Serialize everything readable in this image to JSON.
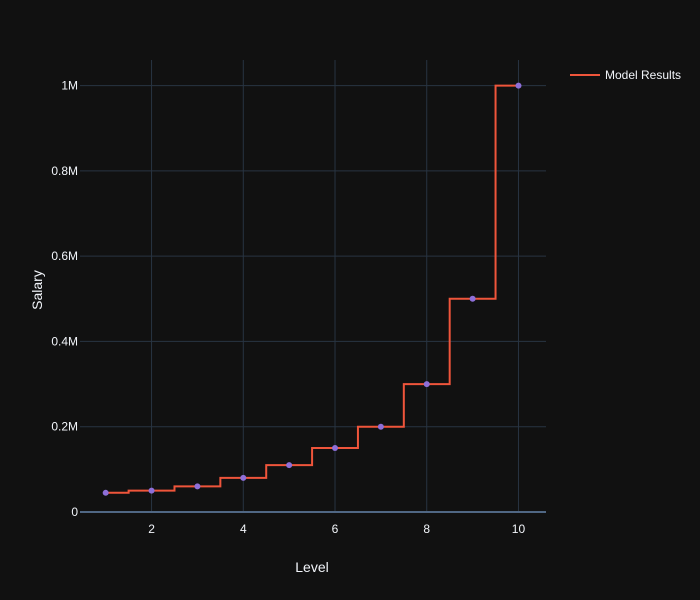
{
  "chart_data": {
    "type": "line",
    "title": "",
    "xlabel": "Level",
    "ylabel": "Salary",
    "xlim": [
      0.44,
      10.6
    ],
    "ylim": [
      0,
      1060000
    ],
    "x_ticks": [
      2,
      4,
      6,
      8,
      10
    ],
    "x_tick_labels": [
      "2",
      "4",
      "6",
      "8",
      "10"
    ],
    "y_ticks": [
      0,
      200000,
      400000,
      600000,
      800000,
      1000000
    ],
    "y_tick_labels": [
      "0",
      "0.2M",
      "0.4M",
      "0.6M",
      "0.8M",
      "1M"
    ],
    "grid": true,
    "legend_position": "top-right",
    "series": [
      {
        "name": "Model Results",
        "kind": "step",
        "color": "#ef553b",
        "x": [
          1,
          2,
          3,
          4,
          5,
          6,
          7,
          8,
          9,
          10
        ],
        "y": [
          45000,
          50000,
          60000,
          80000,
          110000,
          150000,
          200000,
          300000,
          500000,
          1000000
        ]
      },
      {
        "kind": "markers",
        "color": "#8e6fd8",
        "x": [
          1,
          2,
          3,
          4,
          5,
          6,
          7,
          8,
          9,
          10
        ],
        "y": [
          45000,
          50000,
          60000,
          80000,
          110000,
          150000,
          200000,
          300000,
          500000,
          1000000
        ]
      }
    ],
    "colors": {
      "background": "#111111",
      "grid": "#283442",
      "zeroline": "#506784",
      "text": "#f2f5fa"
    }
  }
}
